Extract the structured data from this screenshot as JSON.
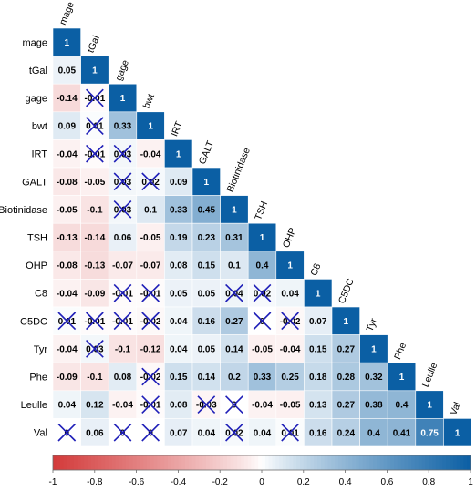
{
  "chart_data": {
    "type": "heatmap",
    "variables": [
      "mage",
      "tGal",
      "gage",
      "bwt",
      "IRT",
      "GALT",
      "Biotinidase",
      "TSH",
      "OHP",
      "C8",
      "C5DC",
      "Tyr",
      "Phe",
      "Leulle",
      "Val"
    ],
    "matrix": [
      [
        "1"
      ],
      [
        "0.05",
        "1"
      ],
      [
        "-0.14",
        "-0.01",
        "1"
      ],
      [
        "0.09",
        "0.01",
        "0.33",
        "1"
      ],
      [
        "-0.04",
        "-0.01",
        "0.03",
        "-0.04",
        "1"
      ],
      [
        "-0.08",
        "-0.05",
        "0.03",
        "0.02",
        "0.09",
        "1"
      ],
      [
        "-0.05",
        "-0.1",
        "0.03",
        "0.1",
        "0.33",
        "0.45",
        "1"
      ],
      [
        "-0.13",
        "-0.14",
        "0.06",
        "-0.05",
        "0.19",
        "0.23",
        "0.31",
        "1"
      ],
      [
        "-0.08",
        "-0.13",
        "-0.07",
        "-0.07",
        "0.08",
        "0.15",
        "0.1",
        "0.4",
        "1"
      ],
      [
        "-0.04",
        "-0.09",
        "-0.01",
        "-0.01",
        "0.05",
        "0.05",
        "0.04",
        "0.02",
        "0.04",
        "1"
      ],
      [
        "0.01",
        "-0.01",
        "-0.01",
        "-0.02",
        "0.04",
        "0.16",
        "0.27",
        "0",
        "-0.02",
        "0.07",
        "1"
      ],
      [
        "-0.04",
        "0.03",
        "-0.1",
        "-0.12",
        "0.04",
        "0.05",
        "0.14",
        "-0.05",
        "-0.04",
        "0.15",
        "0.27",
        "1"
      ],
      [
        "-0.09",
        "-0.1",
        "0.08",
        "-0.02",
        "0.15",
        "0.14",
        "0.2",
        "0.33",
        "0.25",
        "0.18",
        "0.28",
        "0.32",
        "1"
      ],
      [
        "0.04",
        "0.12",
        "-0.04",
        "-0.01",
        "0.08",
        "-0.03",
        "0",
        "-0.04",
        "-0.05",
        "0.13",
        "0.27",
        "0.38",
        "0.4",
        "1"
      ],
      [
        "0",
        "0.06",
        "0",
        "0",
        "0.07",
        "0.04",
        "0.02",
        "0.04",
        "0.01",
        "0.16",
        "0.24",
        "0.4",
        "0.41",
        "0.75",
        "1"
      ]
    ],
    "crossed": [
      [
        2,
        1
      ],
      [
        3,
        1
      ],
      [
        4,
        1
      ],
      [
        4,
        2
      ],
      [
        5,
        2
      ],
      [
        5,
        3
      ],
      [
        6,
        2
      ],
      [
        9,
        2
      ],
      [
        9,
        3
      ],
      [
        9,
        6
      ],
      [
        9,
        7
      ],
      [
        10,
        0
      ],
      [
        10,
        1
      ],
      [
        10,
        2
      ],
      [
        10,
        3
      ],
      [
        10,
        7
      ],
      [
        10,
        8
      ],
      [
        11,
        1
      ],
      [
        12,
        3
      ],
      [
        13,
        3
      ],
      [
        13,
        5
      ],
      [
        13,
        6
      ],
      [
        14,
        0
      ],
      [
        14,
        2
      ],
      [
        14,
        3
      ],
      [
        14,
        6
      ],
      [
        14,
        8
      ]
    ],
    "colorbar": {
      "ticks": [
        "-1",
        "-0.8",
        "-0.6",
        "-0.4",
        "-0.2",
        "0",
        "0.2",
        "0.4",
        "0.6",
        "0.8",
        "1"
      ],
      "range": [
        -1,
        1
      ]
    },
    "colors": {
      "negative": "#d33a3a",
      "neutral": "#ffffff",
      "positive": "#0b5fa4",
      "cross": "#1f1fb8"
    }
  }
}
